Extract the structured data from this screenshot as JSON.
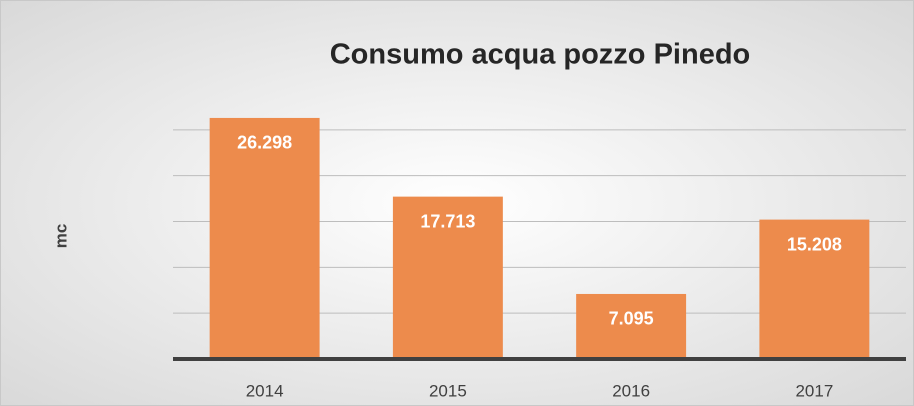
{
  "chart_data": {
    "type": "bar",
    "title": "Consumo acqua pozzo Pinedo",
    "y_label": "mc",
    "categories": [
      "2014",
      "2015",
      "2016",
      "2017"
    ],
    "values": [
      26298,
      17713,
      7095,
      15208
    ],
    "value_labels": [
      "26.298",
      "17.713",
      "7.095",
      "15.208"
    ],
    "color": "#ed8b4c",
    "ylim": [
      0,
      30000
    ],
    "yticks": [
      0,
      5000,
      10000,
      15000,
      20000,
      25000
    ],
    "grid": true
  }
}
